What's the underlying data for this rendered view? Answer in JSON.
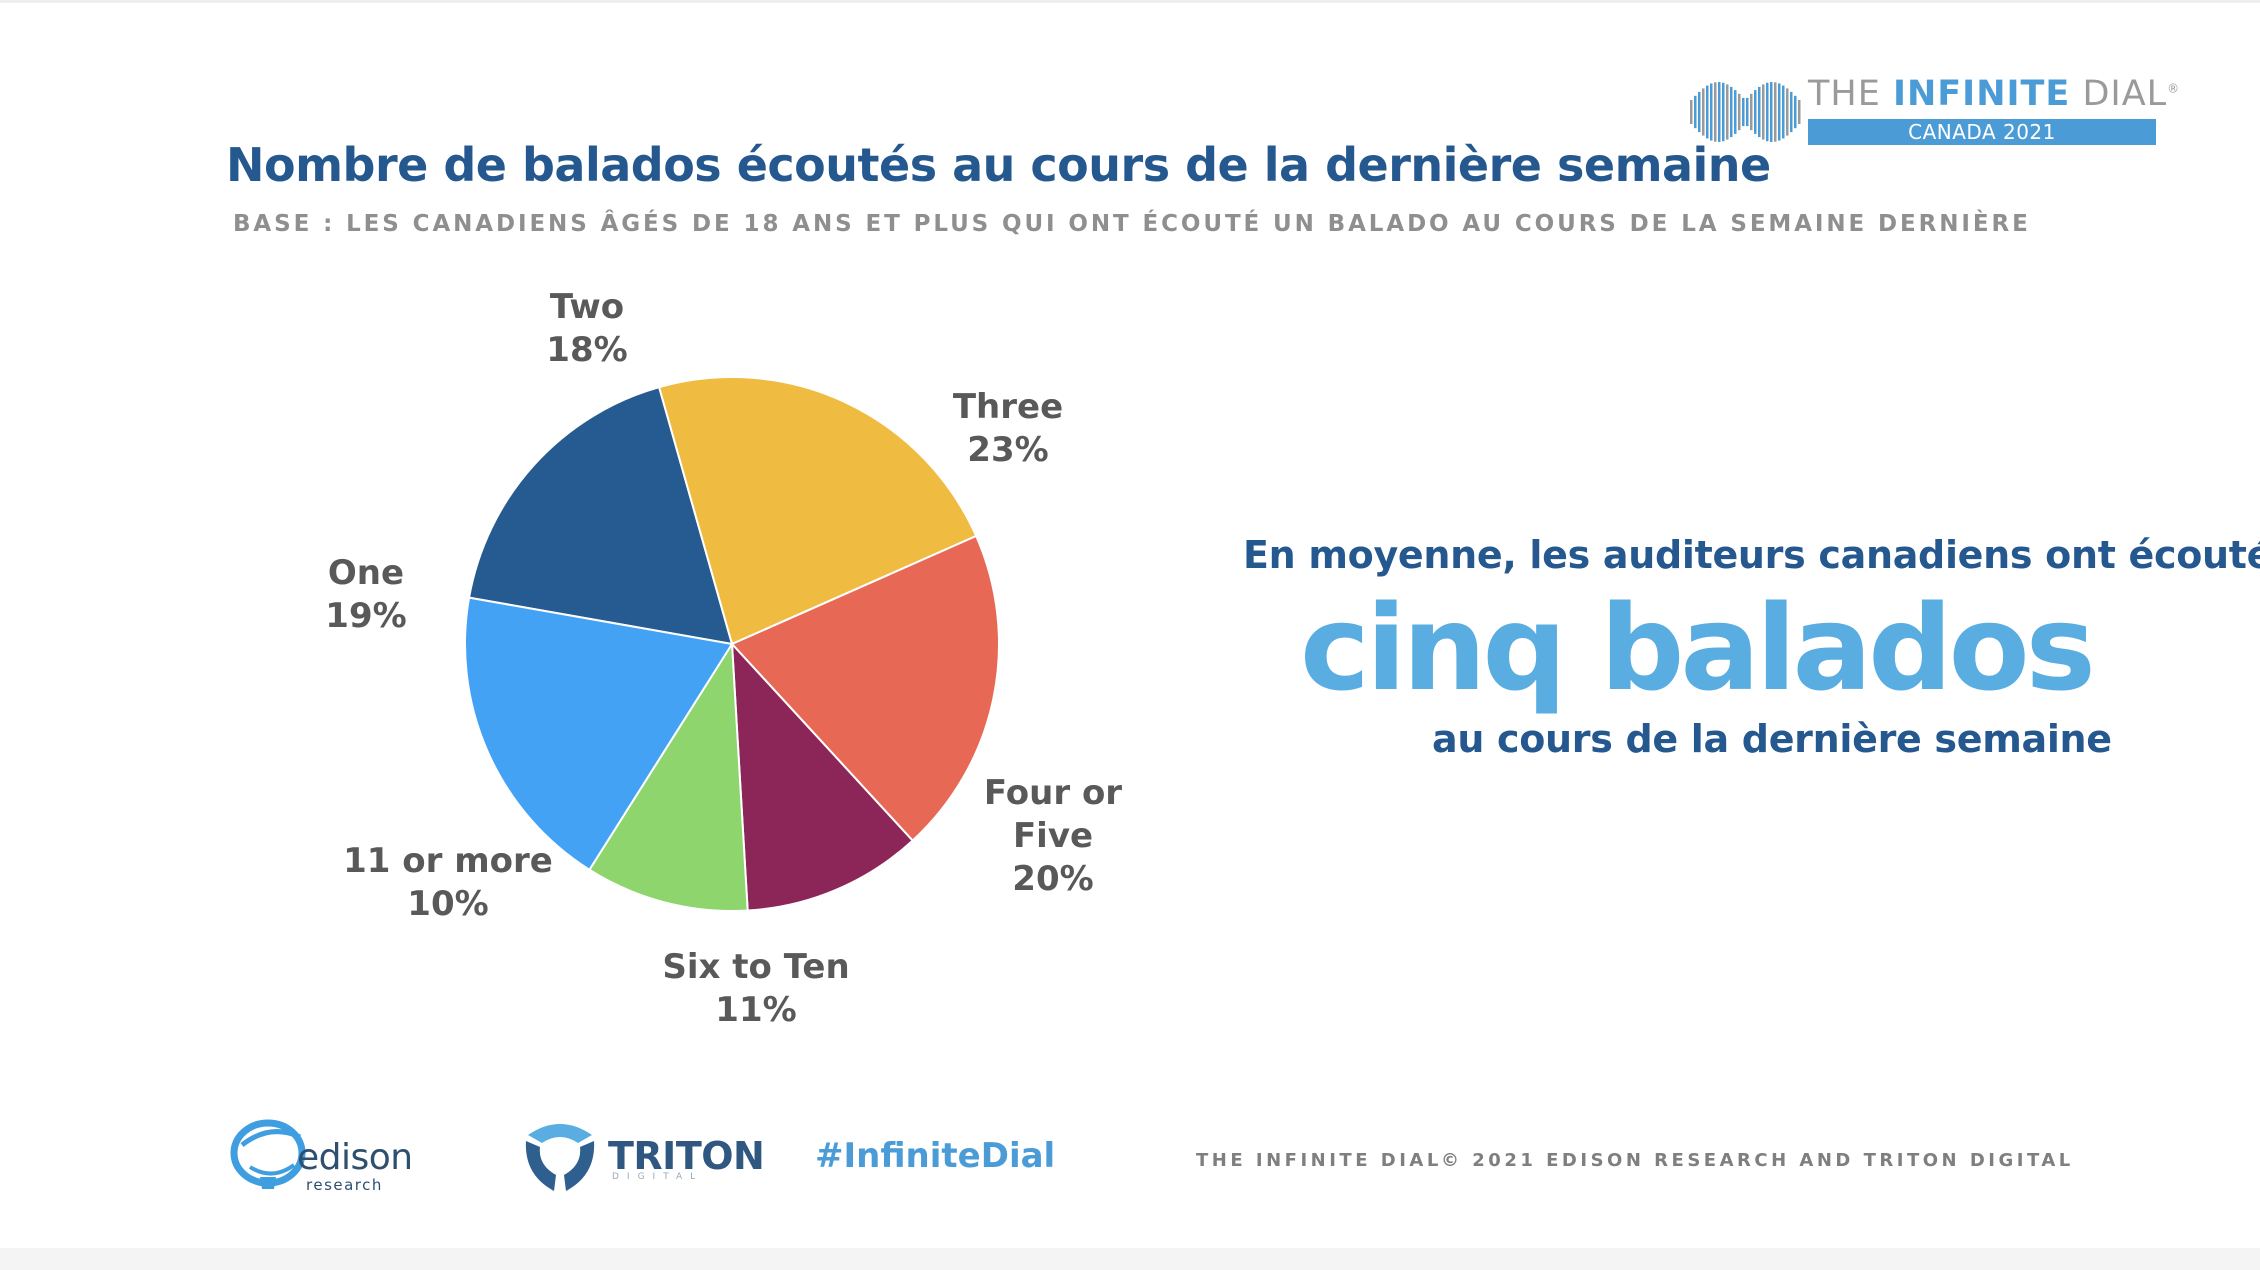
{
  "header": {
    "title": "Nombre de balados écoutés au cours de la dernière semaine",
    "subtitle": "BASE : LES CANADIENS ÂGÉS DE 18 ANS ET PLUS QUI ONT ÉCOUTÉ UN BALADO AU COURS DE LA SEMAINE DERNIÈRE"
  },
  "brand": {
    "word1": "THE",
    "word2": "INFINITE",
    "word3": "DIAL",
    "mark": "®",
    "edition": "CANADA 2021"
  },
  "colors": {
    "title": "#24588f",
    "accent": "#5aade0",
    "label": "#595959"
  },
  "chart_data": {
    "type": "pie",
    "title": "Nombre de balados écoutés au cours de la dernière semaine",
    "slices": [
      {
        "name": "Two",
        "label_lines": [
          "Two"
        ],
        "value": 18,
        "pct_label": "18%",
        "color": "#265b91"
      },
      {
        "name": "Three",
        "label_lines": [
          "Three"
        ],
        "value": 23,
        "pct_label": "23%",
        "color": "#efbc41"
      },
      {
        "name": "Four or Five",
        "label_lines": [
          "Four or",
          "Five"
        ],
        "value": 20,
        "pct_label": "20%",
        "color": "#e76955"
      },
      {
        "name": "Six to Ten",
        "label_lines": [
          "Six to Ten"
        ],
        "value": 11,
        "pct_label": "11%",
        "color": "#8c2659"
      },
      {
        "name": "11 or more",
        "label_lines": [
          "11 or more"
        ],
        "value": 10,
        "pct_label": "10%",
        "color": "#8fd56d"
      },
      {
        "name": "One",
        "label_lines": [
          "One"
        ],
        "value": 19,
        "pct_label": "19%",
        "color": "#44a2f5"
      }
    ]
  },
  "callout": {
    "line1": "En moyenne, les auditeurs canadiens ont écouté",
    "highlight": "cinq balados",
    "line3": "au cours de la dernière semaine"
  },
  "footer": {
    "edison_word": "edison",
    "edison_sub": "research",
    "triton_word": "TRITON",
    "triton_sub": "DIGITAL",
    "hashtag": "#InfiniteDial",
    "left_text": "THE INFINITE DIAL",
    "right_text": "© 2021 EDISON RESEARCH AND TRITON DIGITAL",
    "edison_icon": "edison-globe-icon",
    "triton_icon": "triton-emblem-icon"
  }
}
